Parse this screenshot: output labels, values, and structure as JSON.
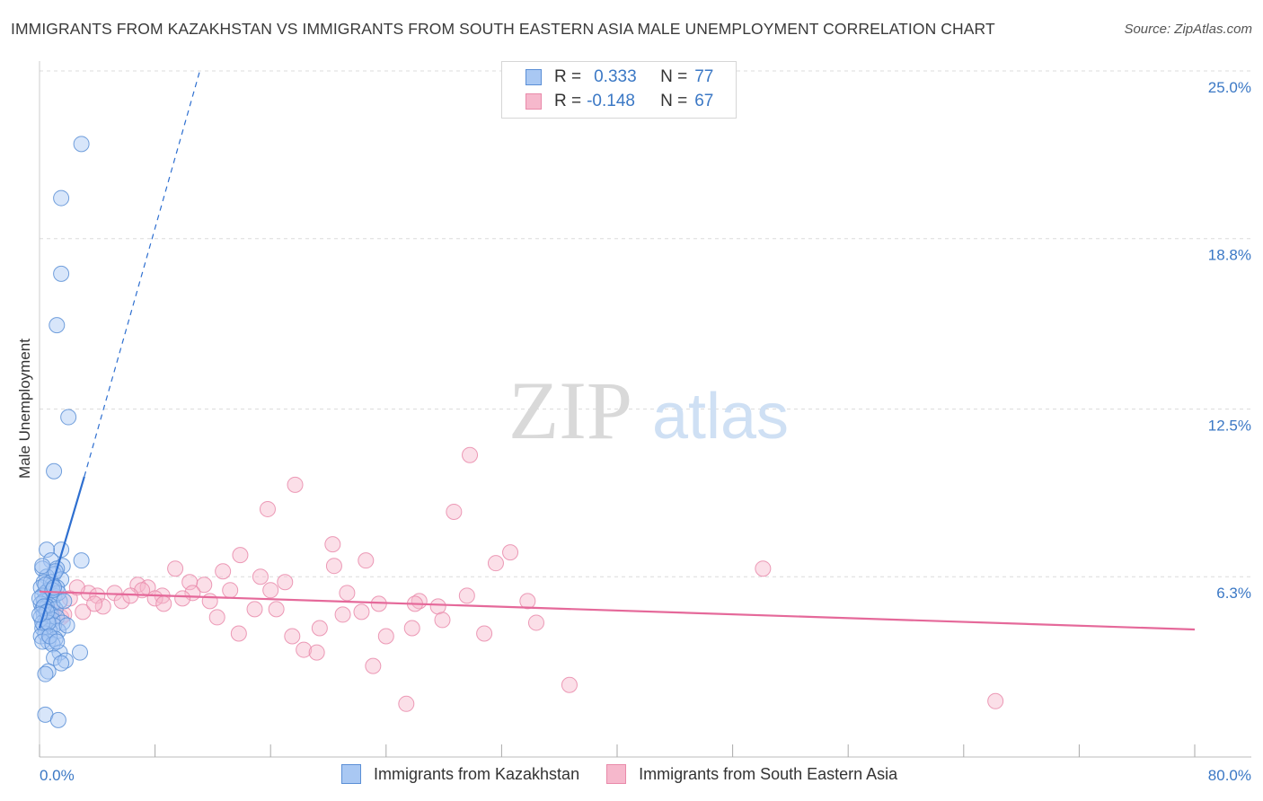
{
  "title": "IMMIGRANTS FROM KAZAKHSTAN VS IMMIGRANTS FROM SOUTH EASTERN ASIA MALE UNEMPLOYMENT CORRELATION CHART",
  "source": "Source: ZipAtlas.com",
  "watermark": {
    "zip": "ZIP",
    "atlas": "atlas"
  },
  "legend": {
    "rows": [
      {
        "r_label": "R =",
        "r_value": "0.333",
        "n_label": "N =",
        "n_value": "77"
      },
      {
        "r_label": "R =",
        "r_value": "-0.148",
        "n_label": "N =",
        "n_value": "67"
      }
    ]
  },
  "bottom_legend": [
    "Immigrants from Kazakhstan",
    "Immigrants from South Eastern Asia"
  ],
  "colors": {
    "blue_fill": "#a9c8f3",
    "blue_stroke": "#5b8fd6",
    "blue_line": "#2e6fd0",
    "pink_fill": "#f6b8cc",
    "pink_stroke": "#e98aaa",
    "pink_line": "#e5699a",
    "tick_text": "#3b78c5",
    "grid": "#dcdcdc"
  },
  "chart_data": {
    "type": "scatter",
    "xlabel": "",
    "ylabel": "Male Unemployment",
    "xlim": [
      0,
      80
    ],
    "ylim": [
      0,
      25.0
    ],
    "x_tick_labels": [
      {
        "value": 0,
        "label": "0.0%"
      },
      {
        "value": 80,
        "label": "80.0%"
      }
    ],
    "y_tick_labels": [
      {
        "value": 6.3,
        "label": "6.3%"
      },
      {
        "value": 12.5,
        "label": "12.5%"
      },
      {
        "value": 18.8,
        "label": "18.8%"
      },
      {
        "value": 25.0,
        "label": "25.0%"
      }
    ],
    "series": [
      {
        "name": "Immigrants from Kazakhstan",
        "color": "blue",
        "R": 0.333,
        "N": 77,
        "trend_solid": [
          [
            0.0,
            4.4
          ],
          [
            3.1,
            10.0
          ]
        ],
        "trend_dashed": [
          [
            3.1,
            10.0
          ],
          [
            11.1,
            25.0
          ]
        ],
        "points": [
          [
            2.9,
            22.3
          ],
          [
            1.5,
            20.3
          ],
          [
            1.5,
            17.5
          ],
          [
            1.2,
            15.6
          ],
          [
            2.0,
            12.2
          ],
          [
            1.0,
            10.2
          ],
          [
            1.5,
            7.3
          ],
          [
            0.5,
            7.3
          ],
          [
            2.9,
            6.9
          ],
          [
            0.8,
            6.9
          ],
          [
            1.6,
            6.7
          ],
          [
            1.2,
            6.6
          ],
          [
            0.2,
            6.6
          ],
          [
            1.0,
            6.4
          ],
          [
            0.5,
            6.3
          ],
          [
            1.5,
            6.2
          ],
          [
            0.3,
            6.1
          ],
          [
            0.9,
            6.0
          ],
          [
            1.2,
            5.9
          ],
          [
            0.1,
            5.9
          ],
          [
            0.6,
            5.8
          ],
          [
            0.4,
            5.7
          ],
          [
            1.0,
            5.6
          ],
          [
            0.2,
            5.6
          ],
          [
            0.7,
            5.5
          ],
          [
            1.4,
            5.4
          ],
          [
            0.3,
            5.4
          ],
          [
            0.9,
            5.3
          ],
          [
            0.1,
            5.3
          ],
          [
            0.5,
            5.2
          ],
          [
            1.1,
            5.1
          ],
          [
            0.2,
            5.1
          ],
          [
            0.6,
            5.0
          ],
          [
            0.8,
            4.9
          ],
          [
            0.3,
            4.9
          ],
          [
            1.2,
            4.8
          ],
          [
            0.1,
            4.8
          ],
          [
            0.5,
            4.7
          ],
          [
            0.9,
            4.7
          ],
          [
            1.6,
            4.6
          ],
          [
            0.3,
            4.5
          ],
          [
            1.0,
            4.5
          ],
          [
            0.2,
            4.4
          ],
          [
            0.7,
            4.3
          ],
          [
            1.3,
            4.3
          ],
          [
            0.4,
            4.2
          ],
          [
            0.1,
            4.1
          ],
          [
            1.1,
            4.0
          ],
          [
            0.6,
            3.9
          ],
          [
            0.2,
            3.9
          ],
          [
            0.9,
            3.8
          ],
          [
            1.4,
            3.5
          ],
          [
            2.8,
            3.5
          ],
          [
            1.0,
            3.3
          ],
          [
            1.8,
            3.2
          ],
          [
            1.5,
            3.1
          ],
          [
            0.6,
            2.8
          ],
          [
            0.4,
            2.7
          ],
          [
            0.8,
            6.1
          ],
          [
            1.3,
            5.7
          ],
          [
            0.4,
            6.0
          ],
          [
            0.0,
            5.5
          ],
          [
            0.2,
            4.6
          ],
          [
            1.7,
            5.4
          ],
          [
            0.9,
            5.8
          ],
          [
            0.6,
            4.6
          ],
          [
            0.3,
            5.2
          ],
          [
            1.9,
            4.5
          ],
          [
            0.5,
            5.0
          ],
          [
            0.0,
            4.9
          ],
          [
            1.1,
            6.5
          ],
          [
            0.7,
            4.1
          ],
          [
            1.2,
            3.9
          ],
          [
            0.4,
            1.2
          ],
          [
            1.3,
            1.0
          ],
          [
            0.2,
            6.7
          ],
          [
            1.0,
            5.9
          ]
        ]
      },
      {
        "name": "Immigrants from South Eastern Asia",
        "color": "pink",
        "R": -0.148,
        "N": 67,
        "trend_solid": [
          [
            0.0,
            5.75
          ],
          [
            80.0,
            4.35
          ]
        ],
        "points": [
          [
            29.8,
            10.8
          ],
          [
            17.7,
            9.7
          ],
          [
            15.8,
            8.8
          ],
          [
            28.7,
            8.7
          ],
          [
            20.3,
            7.5
          ],
          [
            32.6,
            7.2
          ],
          [
            22.6,
            6.9
          ],
          [
            31.6,
            6.8
          ],
          [
            13.9,
            7.1
          ],
          [
            20.4,
            6.7
          ],
          [
            9.4,
            6.6
          ],
          [
            12.7,
            6.5
          ],
          [
            50.1,
            6.6
          ],
          [
            15.3,
            6.3
          ],
          [
            17.0,
            6.1
          ],
          [
            11.4,
            6.0
          ],
          [
            10.4,
            6.1
          ],
          [
            6.8,
            6.0
          ],
          [
            7.5,
            5.9
          ],
          [
            13.2,
            5.8
          ],
          [
            7.1,
            5.8
          ],
          [
            5.2,
            5.7
          ],
          [
            3.4,
            5.7
          ],
          [
            4.0,
            5.6
          ],
          [
            8.5,
            5.6
          ],
          [
            10.6,
            5.7
          ],
          [
            21.3,
            5.7
          ],
          [
            29.6,
            5.6
          ],
          [
            8.0,
            5.5
          ],
          [
            9.9,
            5.5
          ],
          [
            11.8,
            5.4
          ],
          [
            26.3,
            5.4
          ],
          [
            33.8,
            5.4
          ],
          [
            8.6,
            5.3
          ],
          [
            23.5,
            5.3
          ],
          [
            26.0,
            5.3
          ],
          [
            27.6,
            5.2
          ],
          [
            4.4,
            5.2
          ],
          [
            14.9,
            5.1
          ],
          [
            16.4,
            5.1
          ],
          [
            22.3,
            5.0
          ],
          [
            21.0,
            4.9
          ],
          [
            12.3,
            4.8
          ],
          [
            27.9,
            4.7
          ],
          [
            34.4,
            4.6
          ],
          [
            1.5,
            4.8
          ],
          [
            3.0,
            5.0
          ],
          [
            2.1,
            5.5
          ],
          [
            19.4,
            4.4
          ],
          [
            25.8,
            4.4
          ],
          [
            30.8,
            4.2
          ],
          [
            13.8,
            4.2
          ],
          [
            17.5,
            4.1
          ],
          [
            24.0,
            4.1
          ],
          [
            18.3,
            3.6
          ],
          [
            19.2,
            3.5
          ],
          [
            23.1,
            3.0
          ],
          [
            36.7,
            2.3
          ],
          [
            25.4,
            1.6
          ],
          [
            66.2,
            1.7
          ],
          [
            3.8,
            5.3
          ],
          [
            5.7,
            5.4
          ],
          [
            2.6,
            5.9
          ],
          [
            6.3,
            5.6
          ],
          [
            16.0,
            5.8
          ],
          [
            0.9,
            5.0
          ],
          [
            1.7,
            4.9
          ]
        ]
      }
    ]
  }
}
